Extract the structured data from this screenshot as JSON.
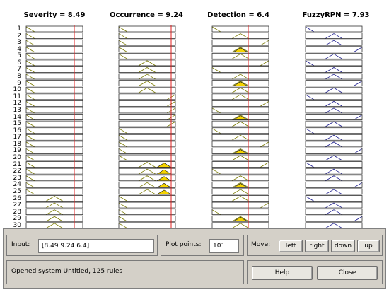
{
  "variables": [
    {
      "label": "Severity = 8.49",
      "value": 8.49,
      "mf_color": "#7a7a00"
    },
    {
      "label": "Occurrence = 9.24",
      "value": 9.24,
      "mf_color": "#7a7a00"
    },
    {
      "label": "Detection = 6.4",
      "value": 6.4,
      "mf_color": "#7a7a00"
    },
    {
      "label": "FuzzyRPN = 7.93",
      "value": 7.93,
      "mf_color": "#1a1a8c"
    }
  ],
  "rule_numbers": [
    "1",
    "2",
    "3",
    "4",
    "5",
    "6",
    "7",
    "8",
    "9",
    "10",
    "11",
    "12",
    "13",
    "14",
    "15",
    "16",
    "17",
    "18",
    "19",
    "20",
    "21",
    "22",
    "23",
    "24",
    "25",
    "26",
    "27",
    "28",
    "29",
    "30"
  ],
  "colors": {
    "marker_line": "#e02020",
    "fill": "#f5d400",
    "frame": "#303030"
  },
  "input": {
    "label": "Input:",
    "value": "[8.49 9.24 6.4]"
  },
  "plot_points": {
    "label": "Plot points:",
    "value": "101"
  },
  "move": {
    "label": "Move:",
    "buttons": [
      "left",
      "right",
      "down",
      "up"
    ]
  },
  "status": "Opened system Untitled, 125 rules",
  "help_label": "Help",
  "close_label": "Close"
}
